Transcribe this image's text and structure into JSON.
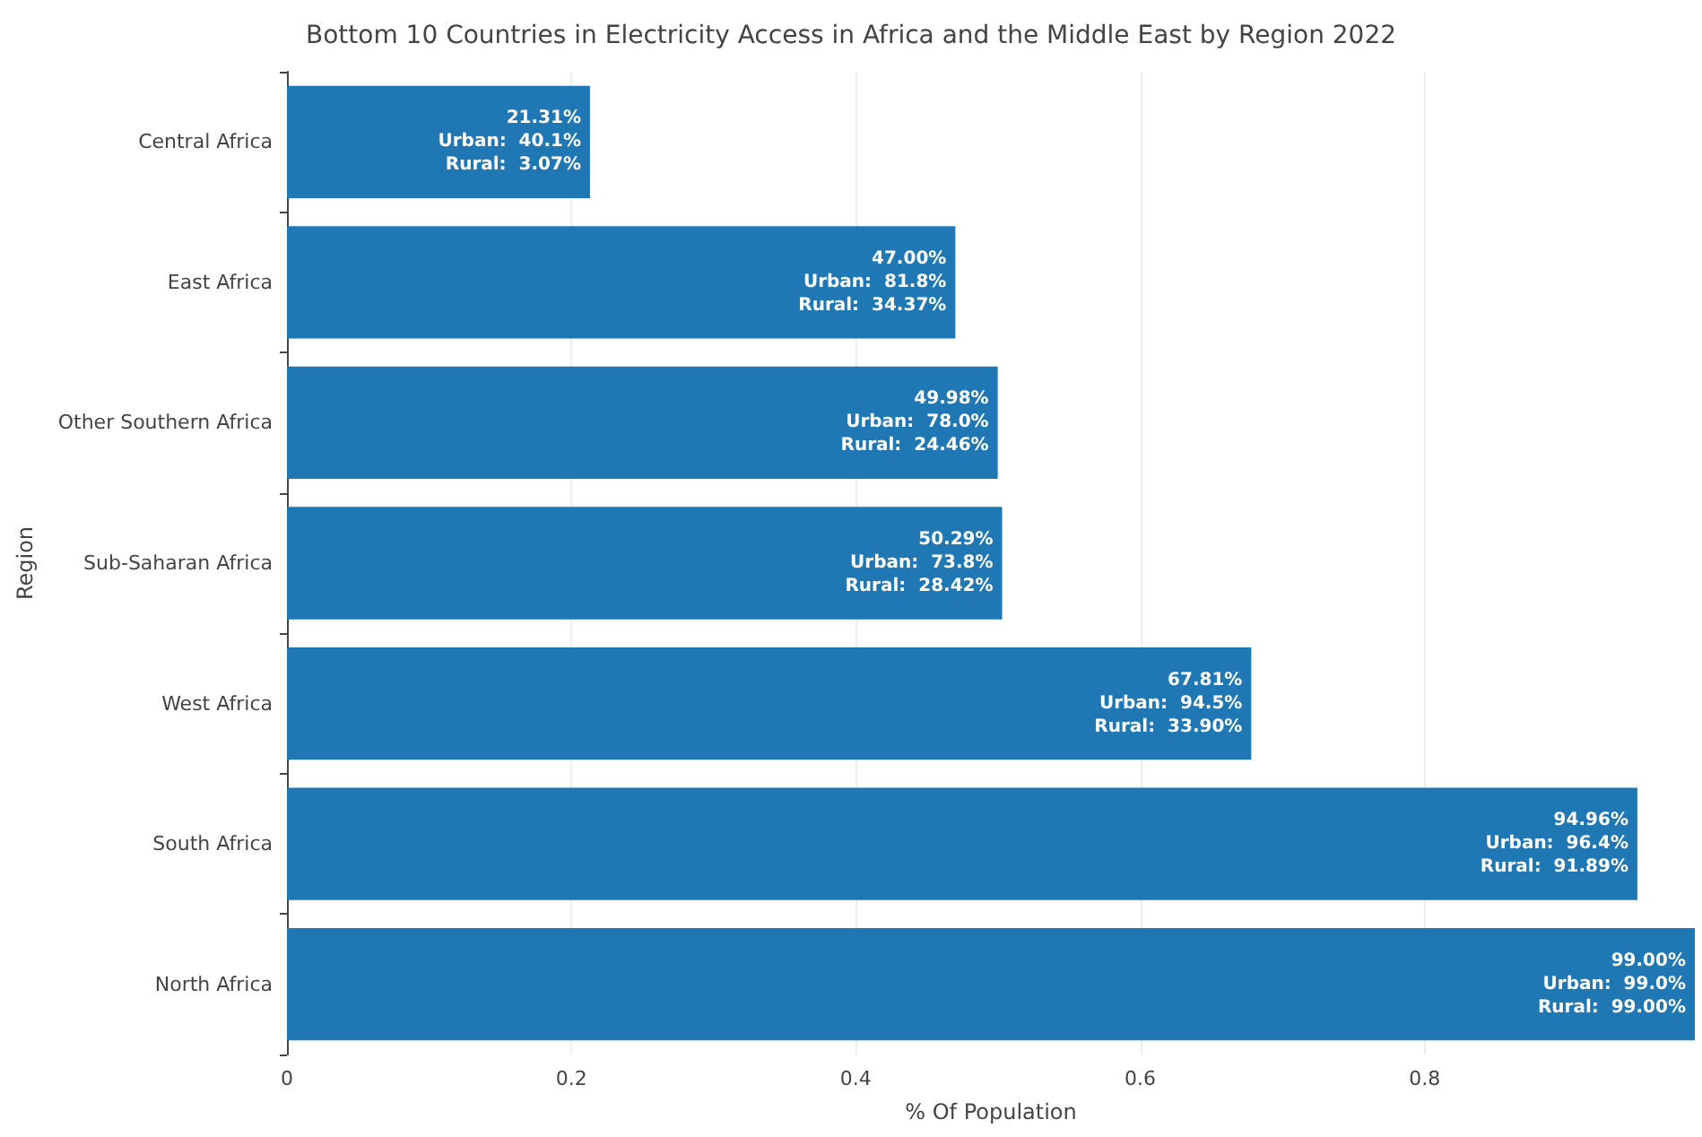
{
  "chart_data": {
    "type": "bar",
    "orientation": "horizontal",
    "title": "Bottom 10 Countries in Electricity Access in Africa and the Middle East by Region 2022",
    "xlabel": "% Of Population",
    "ylabel": "Region",
    "categories": [
      "Central Africa",
      "East Africa",
      "Other Southern Africa",
      "Sub-Saharan Africa",
      "West Africa",
      "South Africa",
      "North Africa"
    ],
    "values": [
      0.2131,
      0.47,
      0.4998,
      0.5029,
      0.6781,
      0.9496,
      0.99
    ],
    "value_labels": [
      "21.31%\nUrban:  40.1%\nRural:  3.07%",
      "47.00%\nUrban:  81.8%\nRural:  34.37%",
      "49.98%\nUrban:  78.0%\nRural:  24.46%",
      "50.29%\nUrban:  73.8%\nRural:  28.42%",
      "67.81%\nUrban:  94.5%\nRural:  33.90%",
      "94.96%\nUrban:  96.4%\nRural:  91.89%",
      "99.00%\nUrban:  99.0%\nRural:  99.00%"
    ],
    "color": "#1f77b4",
    "xlim": [
      0,
      0.99
    ],
    "xticks": [
      0,
      0.2,
      0.4,
      0.6,
      0.8
    ],
    "grid": "x"
  }
}
